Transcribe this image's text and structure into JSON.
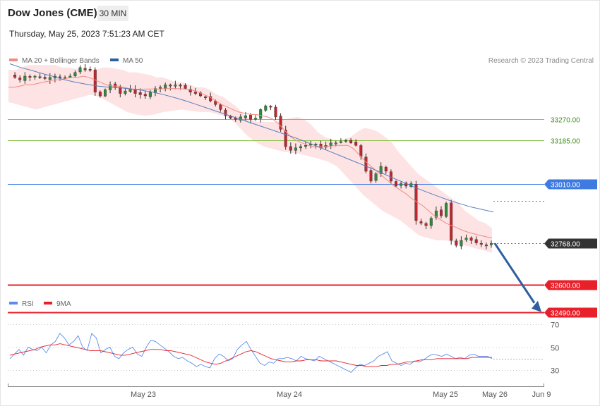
{
  "header": {
    "instrument": "Dow Jones (CME)",
    "timeframe": "30 MIN",
    "datetime": "Thursday, May 25, 2023 7:51:23 AM CET",
    "credit": "Research © 2023 Trading Central"
  },
  "legend": {
    "main": [
      {
        "label": "MA 20 + Bollinger Bands",
        "color": "#f28b82"
      },
      {
        "label": "MA 50",
        "color": "#2f5f9e"
      }
    ],
    "rsi": [
      {
        "label": "RSI",
        "color": "#5b8def"
      },
      {
        "label": "9MA",
        "color": "#e8202a"
      }
    ]
  },
  "colors": {
    "up_candle": "#2e8b3a",
    "down_candle": "#c0262d",
    "bollinger_fill": "#fde3e3",
    "ma20": "#f28b82",
    "ma50": "#5b7fbf",
    "resistance": "#8bc34a",
    "pivot": "#3d7be0",
    "support": "#e8202a",
    "arrow": "#2f5f9e"
  },
  "chart_data": [
    {
      "type": "candlestick",
      "title": "Dow Jones (CME)",
      "xlabel": "",
      "ylabel": "",
      "x_ticks": [
        "May 23",
        "May 24",
        "May 25",
        "May 26",
        "Jun 9"
      ],
      "ylim": [
        32440,
        33460
      ],
      "levels": [
        {
          "label": "33270.00",
          "value": 33270,
          "kind": "resistance"
        },
        {
          "label": "33185.00",
          "value": 33185,
          "kind": "resistance"
        },
        {
          "label": "33010.00",
          "value": 33010,
          "kind": "pivot"
        },
        {
          "label": "32768.00",
          "value": 32768,
          "kind": "last"
        },
        {
          "label": "32600.00",
          "value": 32600,
          "kind": "support"
        },
        {
          "label": "32490.00",
          "value": 32490,
          "kind": "support"
        }
      ],
      "close_path": [
        33450,
        33440,
        33430,
        33445,
        33440,
        33445,
        33440,
        33435,
        33440,
        33445,
        33438,
        33440,
        33445,
        33460,
        33480,
        33470,
        33470,
        33380,
        33365,
        33390,
        33410,
        33400,
        33375,
        33385,
        33395,
        33375,
        33370,
        33365,
        33380,
        33395,
        33400,
        33410,
        33405,
        33410,
        33405,
        33395,
        33380,
        33375,
        33365,
        33360,
        33345,
        33330,
        33310,
        33285,
        33275,
        33270,
        33280,
        33285,
        33270,
        33275,
        33310,
        33325,
        33320,
        33280,
        33230,
        33160,
        33145,
        33155,
        33160,
        33165,
        33170,
        33170,
        33155,
        33165,
        33175,
        33175,
        33180,
        33185,
        33175,
        33165,
        33120,
        33060,
        33020,
        33050,
        33080,
        33060,
        33020,
        33000,
        33010,
        33000,
        33010,
        32860,
        32850,
        32840,
        32870,
        32900,
        32880,
        32930,
        32780,
        32760,
        32780,
        32790,
        32780,
        32770,
        32765,
        32760,
        32768
      ],
      "ma20": [
        33400,
        33400,
        33405,
        33410,
        33410,
        33415,
        33420,
        33425,
        33430,
        33430,
        33435,
        33440,
        33440,
        33445,
        33440,
        33430,
        33420,
        33410,
        33405,
        33405,
        33400,
        33395,
        33392,
        33392,
        33393,
        33393,
        33393,
        33394,
        33395,
        33395,
        33394,
        33392,
        33388,
        33380,
        33370,
        33360,
        33345,
        33330,
        33320,
        33310,
        33300,
        33295,
        33290,
        33290,
        33285,
        33280,
        33270,
        33250,
        33225,
        33200,
        33185,
        33175,
        33165,
        33160,
        33160,
        33160,
        33162,
        33165,
        33165,
        33165,
        33150,
        33125,
        33100,
        33080,
        33060,
        33040,
        33020,
        33000,
        32985,
        32970,
        32950,
        32935,
        32920,
        32900,
        32880,
        32865,
        32850,
        32840,
        32830,
        32820,
        32812,
        32806,
        32800,
        32795,
        32790
      ],
      "bb_upper": [
        33470,
        33470,
        33480,
        33490,
        33490,
        33490,
        33490,
        33490,
        33480,
        33480,
        33475,
        33470,
        33470,
        33470,
        33480,
        33480,
        33475,
        33470,
        33460,
        33460,
        33455,
        33450,
        33440,
        33440,
        33430,
        33420,
        33420,
        33410,
        33400,
        33400,
        33390,
        33370,
        33360,
        33340,
        33320,
        33290,
        33270,
        33260,
        33260,
        33260,
        33260,
        33270,
        33275,
        33280,
        33270,
        33250,
        33220,
        33200,
        33190,
        33185,
        33190,
        33200,
        33220,
        33235,
        33230,
        33220,
        33200,
        33180,
        33140,
        33110,
        33080,
        33050,
        33030,
        33010,
        32990,
        32970,
        32950,
        32930,
        32900,
        32880,
        32860,
        32850,
        32830
      ],
      "bb_lower": [
        33340,
        33330,
        33320,
        33310,
        33320,
        33330,
        33340,
        33350,
        33360,
        33370,
        33360,
        33340,
        33320,
        33300,
        33290,
        33285,
        33290,
        33300,
        33305,
        33310,
        33305,
        33300,
        33300,
        33290,
        33280,
        33250,
        33210,
        33180,
        33160,
        33150,
        33140,
        33135,
        33130,
        33120,
        33110,
        33100,
        33080,
        33040,
        33000,
        32960,
        32930,
        32900,
        32880,
        32860,
        32830,
        32800,
        32790,
        32780,
        32780,
        32770,
        32760,
        32750,
        32740,
        32730
      ],
      "ma50": [
        33495,
        33480,
        33468,
        33455,
        33443,
        33430,
        33420,
        33412,
        33405,
        33400,
        33398,
        33393,
        33388,
        33380,
        33370,
        33358,
        33345,
        33330,
        33315,
        33300,
        33285,
        33270,
        33255,
        33240,
        33225,
        33210,
        33195,
        33178,
        33160,
        33142,
        33124,
        33106,
        33088,
        33070,
        33050,
        33030,
        33012,
        32992,
        32975,
        32958,
        32942,
        32928,
        32915,
        32905,
        32895
      ],
      "projection": {
        "from": 32768,
        "to": 32490
      }
    },
    {
      "type": "line",
      "title": "RSI",
      "ylim": [
        20,
        80
      ],
      "y_ticks": [
        70,
        50,
        30
      ],
      "series": [
        {
          "name": "RSI",
          "values": [
            40,
            44,
            48,
            43,
            50,
            48,
            47,
            50,
            45,
            52,
            55,
            62,
            58,
            52,
            55,
            60,
            50,
            47,
            62,
            58,
            45,
            48,
            50,
            42,
            40,
            45,
            48,
            50,
            44,
            42,
            50,
            56,
            55,
            52,
            49,
            46,
            42,
            40,
            41,
            38,
            36,
            33,
            35,
            33,
            32,
            40,
            44,
            42,
            38,
            40,
            48,
            52,
            55,
            48,
            42,
            36,
            34,
            37,
            36,
            40,
            40,
            41,
            40,
            38,
            42,
            40,
            39,
            38,
            42,
            40,
            38,
            36,
            34,
            32,
            30,
            28,
            32,
            35,
            34,
            36,
            38,
            42,
            44,
            46,
            38,
            36,
            34,
            36,
            35,
            38,
            37,
            39,
            42,
            44,
            43,
            42,
            44,
            42,
            40,
            41,
            40,
            43,
            44,
            42,
            42,
            42,
            40
          ]
        },
        {
          "name": "9MA",
          "values": [
            43,
            44,
            45,
            46,
            47,
            48,
            50,
            51,
            52,
            52,
            53,
            52,
            51,
            50,
            49,
            48,
            47,
            47,
            47,
            46,
            45,
            44,
            43,
            43,
            44,
            45,
            46,
            47,
            48,
            48,
            48,
            47,
            47,
            46,
            45,
            44,
            43,
            41,
            39,
            37,
            36,
            35,
            36,
            38,
            40,
            42,
            44,
            46,
            47,
            46,
            44,
            42,
            40,
            39,
            38,
            37,
            37,
            38,
            38,
            39,
            39,
            39,
            38,
            38,
            38,
            38,
            37,
            36,
            35,
            34,
            34,
            33,
            33,
            33,
            34,
            34,
            35,
            35,
            36,
            37,
            37,
            38,
            39,
            39,
            39,
            40,
            40,
            40,
            40,
            40,
            40,
            40,
            41,
            41,
            41,
            41,
            41
          ]
        }
      ]
    }
  ]
}
